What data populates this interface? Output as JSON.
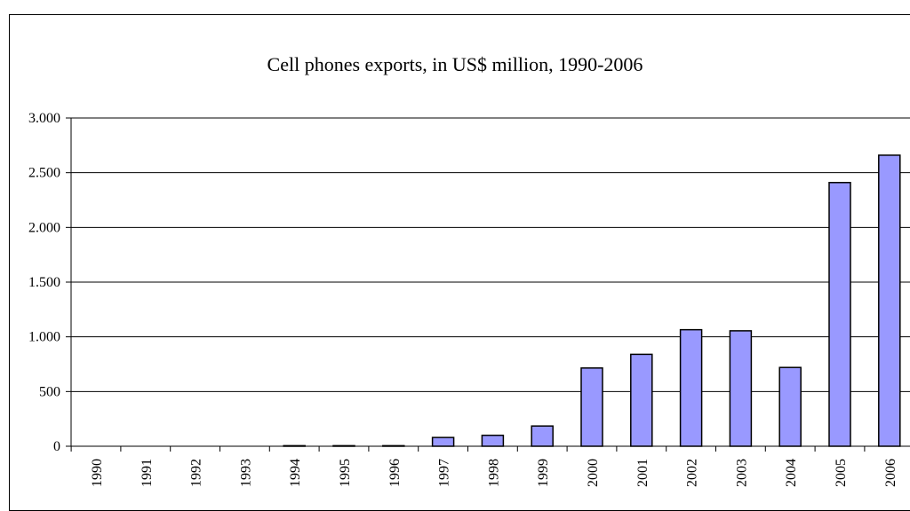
{
  "chart_data": {
    "type": "bar",
    "title": "Cell phones exports, in US$ million, 1990-2006",
    "xlabel": "",
    "ylabel": "",
    "categories": [
      "1990",
      "1991",
      "1992",
      "1993",
      "1994",
      "1995",
      "1996",
      "1997",
      "1998",
      "1999",
      "2000",
      "2001",
      "2002",
      "2003",
      "2004",
      "2005",
      "2006"
    ],
    "values": [
      0,
      0,
      0,
      0,
      5,
      5,
      5,
      80,
      100,
      185,
      715,
      840,
      1065,
      1055,
      720,
      2410,
      2660
    ],
    "ylim": [
      0,
      3000
    ],
    "yticks": [
      0,
      500,
      1000,
      1500,
      2000,
      2500,
      3000
    ],
    "ytick_labels": [
      "0",
      "500",
      "1.000",
      "1.500",
      "2.000",
      "2.500",
      "3.000"
    ],
    "grid": true,
    "bar_color": "#9999ff",
    "bar_edge_color": "#000000"
  }
}
